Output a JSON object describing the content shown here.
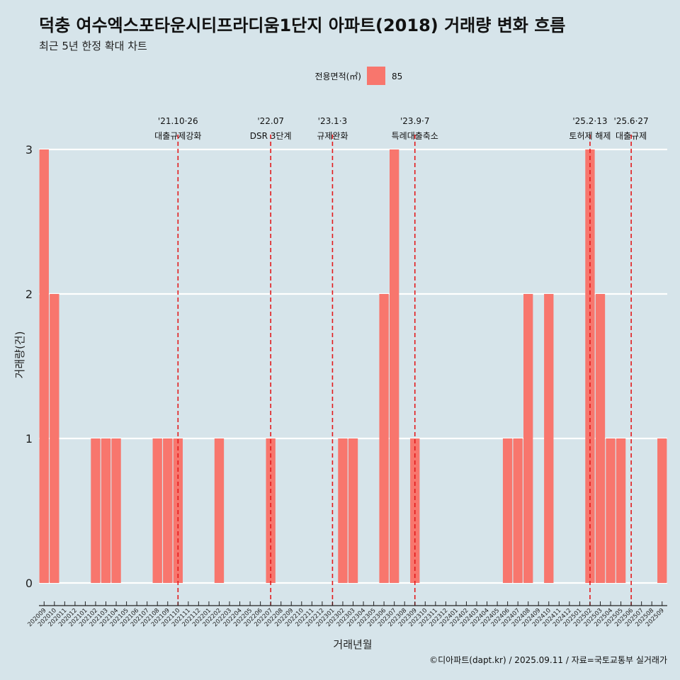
{
  "page": {
    "title": "덕충 여수엑스포타운시티프라디움1단지 아파트(2018) 거래량 변화 흐름",
    "subtitle": "최근 5년 한정 확대 차트",
    "caption": "©디아파트(dapt.kr) / 2025.09.11 / 자료=국토교통부 실거래가"
  },
  "legend": {
    "title": "전용면적(㎡)",
    "items": [
      {
        "label": "85",
        "color": "#f8766d"
      }
    ]
  },
  "chart_data": {
    "type": "bar",
    "xlabel": "거래년월",
    "ylabel": "거래량(건)",
    "ylim": [
      0,
      3
    ],
    "yticks": [
      0,
      1,
      2,
      3
    ],
    "grid": true,
    "legend_position": "top",
    "bar_color": "#f8766d",
    "categories": [
      "202009",
      "202010",
      "202011",
      "202012",
      "202101",
      "202102",
      "202103",
      "202104",
      "202105",
      "202106",
      "202107",
      "202108",
      "202109",
      "202110",
      "202111",
      "202112",
      "202201",
      "202202",
      "202203",
      "202204",
      "202205",
      "202206",
      "202207",
      "202208",
      "202209",
      "202210",
      "202211",
      "202212",
      "202301",
      "202302",
      "202303",
      "202304",
      "202305",
      "202306",
      "202307",
      "202308",
      "202309",
      "202310",
      "202311",
      "202312",
      "202401",
      "202402",
      "202403",
      "202404",
      "202405",
      "202406",
      "202407",
      "202408",
      "202409",
      "202410",
      "202411",
      "202412",
      "202501",
      "202502",
      "202503",
      "202504",
      "202505",
      "202506",
      "202507",
      "202508",
      "202509"
    ],
    "series": [
      {
        "name": "85",
        "values": [
          3,
          2,
          0,
          0,
          0,
          1,
          1,
          1,
          0,
          0,
          0,
          1,
          1,
          1,
          0,
          0,
          0,
          1,
          0,
          0,
          0,
          0,
          1,
          0,
          0,
          0,
          0,
          0,
          0,
          1,
          1,
          0,
          0,
          2,
          3,
          0,
          1,
          0,
          0,
          0,
          0,
          0,
          0,
          0,
          0,
          1,
          1,
          2,
          0,
          2,
          0,
          0,
          0,
          3,
          2,
          1,
          1,
          0,
          0,
          0,
          1
        ]
      }
    ],
    "annotations": [
      {
        "category": "202110",
        "date": "'21.10·26",
        "label": "대출규제강화",
        "color": "#e31a1c"
      },
      {
        "category": "202207",
        "date": "'22.07",
        "label": "DSR 3단계",
        "color": "#e31a1c"
      },
      {
        "category": "202301",
        "date": "'23.1·3",
        "label": "규제완화",
        "color": "#e31a1c"
      },
      {
        "category": "202309",
        "date": "'23.9·7",
        "label": "특례대출축소",
        "color": "#e31a1c"
      },
      {
        "category": "202502",
        "date": "'25.2·13",
        "label": "토허제 해제",
        "color": "#e31a1c"
      },
      {
        "category": "202506",
        "date": "'25.6·27",
        "label": "대출규제",
        "color": "#e31a1c"
      }
    ]
  }
}
